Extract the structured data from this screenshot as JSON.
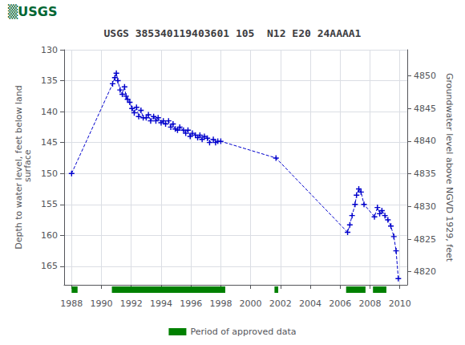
{
  "chart_data": {
    "type": "line",
    "title": "USGS 385340119403601 105  N12 E20 24AAAA1",
    "annotations": [
      {
        "text": "▒USGS",
        "color": "#006633"
      }
    ],
    "ylabel": "Depth to water level, feet below land\n surface",
    "y2label": "Groundwater level above NGVD 1929, feet",
    "xlim": [
      1987.5,
      2010.5
    ],
    "xticks": [
      1988,
      1990,
      1992,
      1994,
      1996,
      1998,
      2000,
      2002,
      2004,
      2006,
      2008,
      2010
    ],
    "ylim": [
      168,
      130
    ],
    "yticks": [
      130,
      135,
      140,
      145,
      150,
      155,
      160,
      165
    ],
    "y2lim": [
      4818,
      4854
    ],
    "y2ticks": [
      4820,
      4825,
      4830,
      4835,
      4840,
      4845,
      4850
    ],
    "grid": true,
    "legend": "bottom",
    "x": [
      1988.0,
      1990.75,
      1990.9,
      1991.0,
      1991.1,
      1991.25,
      1991.4,
      1991.55,
      1991.65,
      1991.75,
      1991.9,
      1992.05,
      1992.2,
      1992.35,
      1992.5,
      1992.65,
      1992.8,
      1993.0,
      1993.15,
      1993.3,
      1993.5,
      1993.65,
      1993.8,
      1994.0,
      1994.15,
      1994.3,
      1994.5,
      1994.65,
      1994.8,
      1994.95,
      1995.1,
      1995.25,
      1995.5,
      1995.65,
      1995.8,
      1995.95,
      1996.1,
      1996.3,
      1996.45,
      1996.6,
      1996.75,
      1996.9,
      1997.1,
      1997.25,
      1997.5,
      1997.65,
      1997.8,
      1998.0,
      2001.7,
      2006.5,
      2006.65,
      2006.8,
      2007.0,
      2007.1,
      2007.25,
      2007.4,
      2007.6,
      2008.3,
      2008.5,
      2008.65,
      2008.8,
      2009.0,
      2009.2,
      2009.4,
      2009.6,
      2009.75,
      2009.9
    ],
    "series": [
      {
        "type": "line",
        "color": "#0000cc",
        "line_style": "dashed",
        "marker": "plus",
        "values": [
          150.0,
          135.5,
          134.5,
          133.8,
          135.0,
          136.5,
          137.2,
          136.0,
          137.5,
          138.0,
          138.5,
          139.5,
          140.2,
          139.3,
          140.8,
          139.8,
          141.0,
          141.0,
          140.5,
          141.5,
          140.8,
          141.5,
          141.0,
          141.8,
          141.5,
          142.0,
          141.5,
          142.5,
          142.0,
          142.8,
          143.0,
          142.5,
          143.0,
          143.5,
          143.0,
          144.0,
          143.5,
          143.8,
          144.2,
          143.8,
          144.5,
          144.0,
          144.3,
          145.0,
          144.5,
          145.0,
          144.8,
          144.8,
          147.5,
          159.5,
          158.3,
          156.8,
          155.0,
          153.5,
          152.5,
          153.0,
          155.0,
          157.0,
          155.5,
          156.5,
          156.0,
          156.8,
          157.5,
          158.5,
          160.2,
          162.5,
          167.0
        ]
      },
      {
        "name": "Period of approved data",
        "type": "bar",
        "color": "#008000",
        "periods": [
          [
            1988.0,
            1988.4
          ],
          [
            1990.7,
            1998.3
          ],
          [
            2001.6,
            2001.85
          ],
          [
            2006.4,
            2007.7
          ],
          [
            2008.2,
            2009.1
          ]
        ]
      }
    ]
  }
}
